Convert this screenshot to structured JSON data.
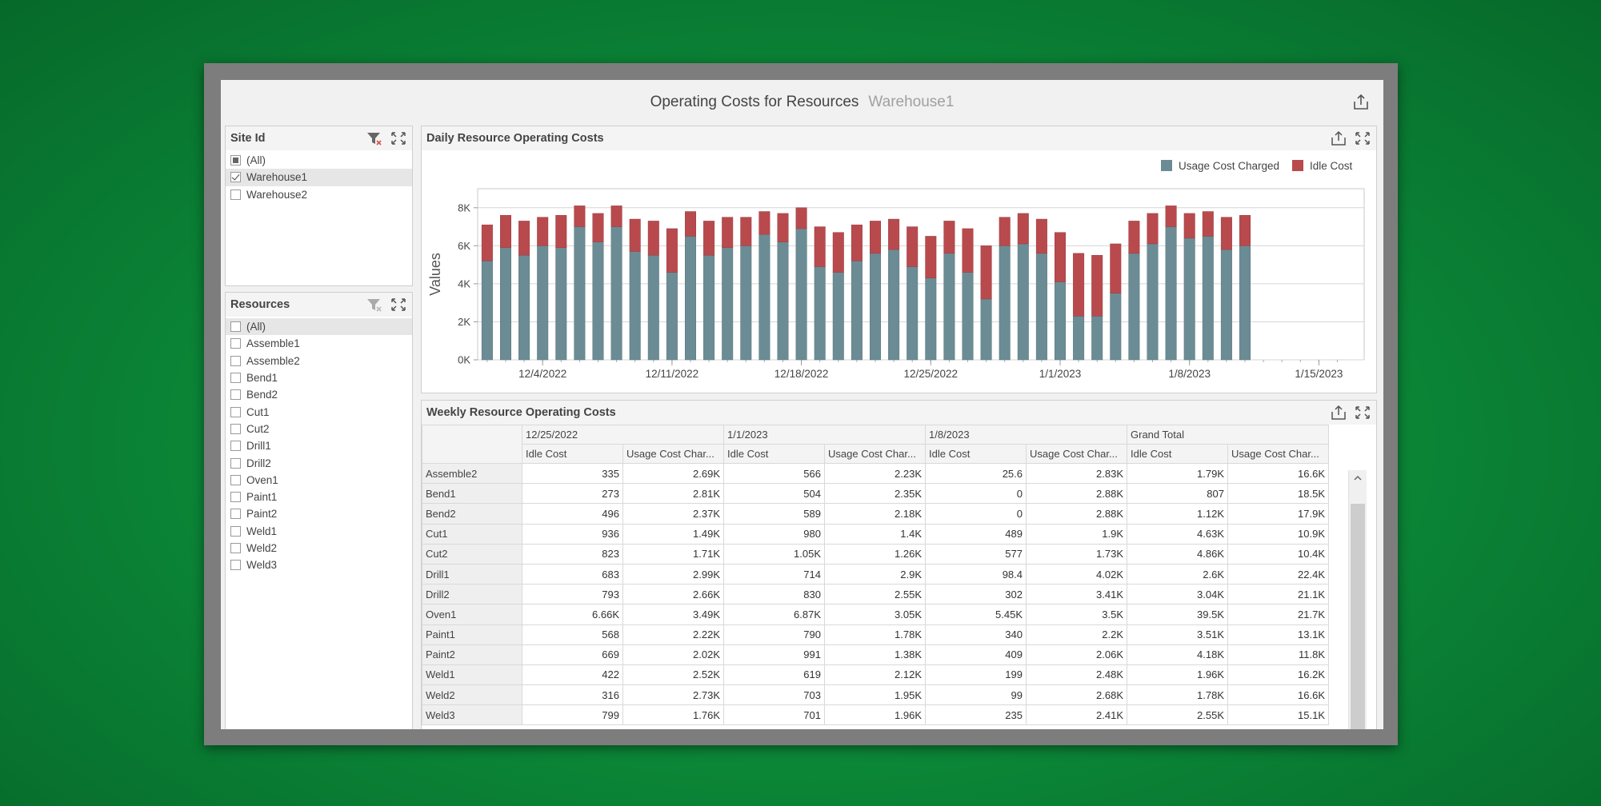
{
  "dashboard": {
    "title": "Operating Costs for Resources",
    "subtitle": "Warehouse1",
    "export_icon": "export-icon"
  },
  "site_filter": {
    "title": "Site Id",
    "items": [
      {
        "label": "(All)",
        "state": "partial"
      },
      {
        "label": "Warehouse1",
        "state": "checked"
      },
      {
        "label": "Warehouse2",
        "state": "unchecked"
      }
    ]
  },
  "resources_filter": {
    "title": "Resources",
    "items": [
      {
        "label": "(All)"
      },
      {
        "label": "Assemble1"
      },
      {
        "label": "Assemble2"
      },
      {
        "label": "Bend1"
      },
      {
        "label": "Bend2"
      },
      {
        "label": "Cut1"
      },
      {
        "label": "Cut2"
      },
      {
        "label": "Drill1"
      },
      {
        "label": "Drill2"
      },
      {
        "label": "Oven1"
      },
      {
        "label": "Paint1"
      },
      {
        "label": "Paint2"
      },
      {
        "label": "Weld1"
      },
      {
        "label": "Weld2"
      },
      {
        "label": "Weld3"
      }
    ]
  },
  "daily_chart": {
    "title": "Daily Resource Operating Costs"
  },
  "chart_data": {
    "type": "bar",
    "stacked": true,
    "title": "",
    "xlabel": "",
    "ylabel": "Values",
    "ylim": [
      0,
      9000
    ],
    "yticks": [
      "0K",
      "2K",
      "4K",
      "6K",
      "8K"
    ],
    "xticks": [
      "12/4/2022",
      "12/11/2022",
      "12/18/2022",
      "12/25/2022",
      "1/1/2023",
      "1/8/2023",
      "1/15/2023"
    ],
    "legend_position": "top-right",
    "grid": true,
    "x_start": "12/1/2022",
    "series": [
      {
        "name": "Usage Cost Charged",
        "color": "#6b8c95",
        "values": [
          5200,
          5900,
          5500,
          6000,
          5900,
          7000,
          6200,
          7000,
          5700,
          5500,
          4600,
          6500,
          5500,
          5900,
          6000,
          6600,
          6200,
          6900,
          4900,
          4600,
          5200,
          5600,
          5800,
          4900,
          4300,
          5600,
          4600,
          3200,
          6000,
          6100,
          5600,
          4100,
          2300,
          2300,
          3500,
          5600,
          6100,
          7000,
          6400,
          6500,
          5800,
          6000
        ]
      },
      {
        "name": "Idle Cost",
        "color": "#b84a4d",
        "values": [
          1900,
          1700,
          1800,
          1500,
          1700,
          1100,
          1500,
          1100,
          1700,
          1800,
          2300,
          1300,
          1800,
          1600,
          1500,
          1200,
          1500,
          1100,
          2100,
          2100,
          1900,
          1700,
          1600,
          2100,
          2200,
          1700,
          2300,
          2800,
          1500,
          1600,
          1800,
          2600,
          3300,
          3200,
          2600,
          1700,
          1600,
          1100,
          1300,
          1300,
          1700,
          1600
        ]
      }
    ]
  },
  "weekly_table": {
    "title": "Weekly Resource Operating Costs",
    "column_groups": [
      "12/25/2022",
      "1/1/2023",
      "1/8/2023",
      "Grand Total"
    ],
    "measures": [
      "Idle Cost",
      "Usage Cost Char..."
    ],
    "rows": [
      {
        "name": "Assemble2",
        "values": [
          "335",
          "2.69K",
          "566",
          "2.23K",
          "25.6",
          "2.83K",
          "1.79K",
          "16.6K"
        ]
      },
      {
        "name": "Bend1",
        "values": [
          "273",
          "2.81K",
          "504",
          "2.35K",
          "0",
          "2.88K",
          "807",
          "18.5K"
        ]
      },
      {
        "name": "Bend2",
        "values": [
          "496",
          "2.37K",
          "589",
          "2.18K",
          "0",
          "2.88K",
          "1.12K",
          "17.9K"
        ]
      },
      {
        "name": "Cut1",
        "values": [
          "936",
          "1.49K",
          "980",
          "1.4K",
          "489",
          "1.9K",
          "4.63K",
          "10.9K"
        ]
      },
      {
        "name": "Cut2",
        "values": [
          "823",
          "1.71K",
          "1.05K",
          "1.26K",
          "577",
          "1.73K",
          "4.86K",
          "10.4K"
        ]
      },
      {
        "name": "Drill1",
        "values": [
          "683",
          "2.99K",
          "714",
          "2.9K",
          "98.4",
          "4.02K",
          "2.6K",
          "22.4K"
        ]
      },
      {
        "name": "Drill2",
        "values": [
          "793",
          "2.66K",
          "830",
          "2.55K",
          "302",
          "3.41K",
          "3.04K",
          "21.1K"
        ]
      },
      {
        "name": "Oven1",
        "values": [
          "6.66K",
          "3.49K",
          "6.87K",
          "3.05K",
          "5.45K",
          "3.5K",
          "39.5K",
          "21.7K"
        ]
      },
      {
        "name": "Paint1",
        "values": [
          "568",
          "2.22K",
          "790",
          "1.78K",
          "340",
          "2.2K",
          "3.51K",
          "13.1K"
        ]
      },
      {
        "name": "Paint2",
        "values": [
          "669",
          "2.02K",
          "991",
          "1.38K",
          "409",
          "2.06K",
          "4.18K",
          "11.8K"
        ]
      },
      {
        "name": "Weld1",
        "values": [
          "422",
          "2.52K",
          "619",
          "2.12K",
          "199",
          "2.48K",
          "1.96K",
          "16.2K"
        ]
      },
      {
        "name": "Weld2",
        "values": [
          "316",
          "2.73K",
          "703",
          "1.95K",
          "99",
          "2.68K",
          "1.78K",
          "16.6K"
        ]
      },
      {
        "name": "Weld3",
        "values": [
          "799",
          "1.76K",
          "701",
          "1.96K",
          "235",
          "2.41K",
          "2.55K",
          "15.1K"
        ]
      }
    ]
  }
}
